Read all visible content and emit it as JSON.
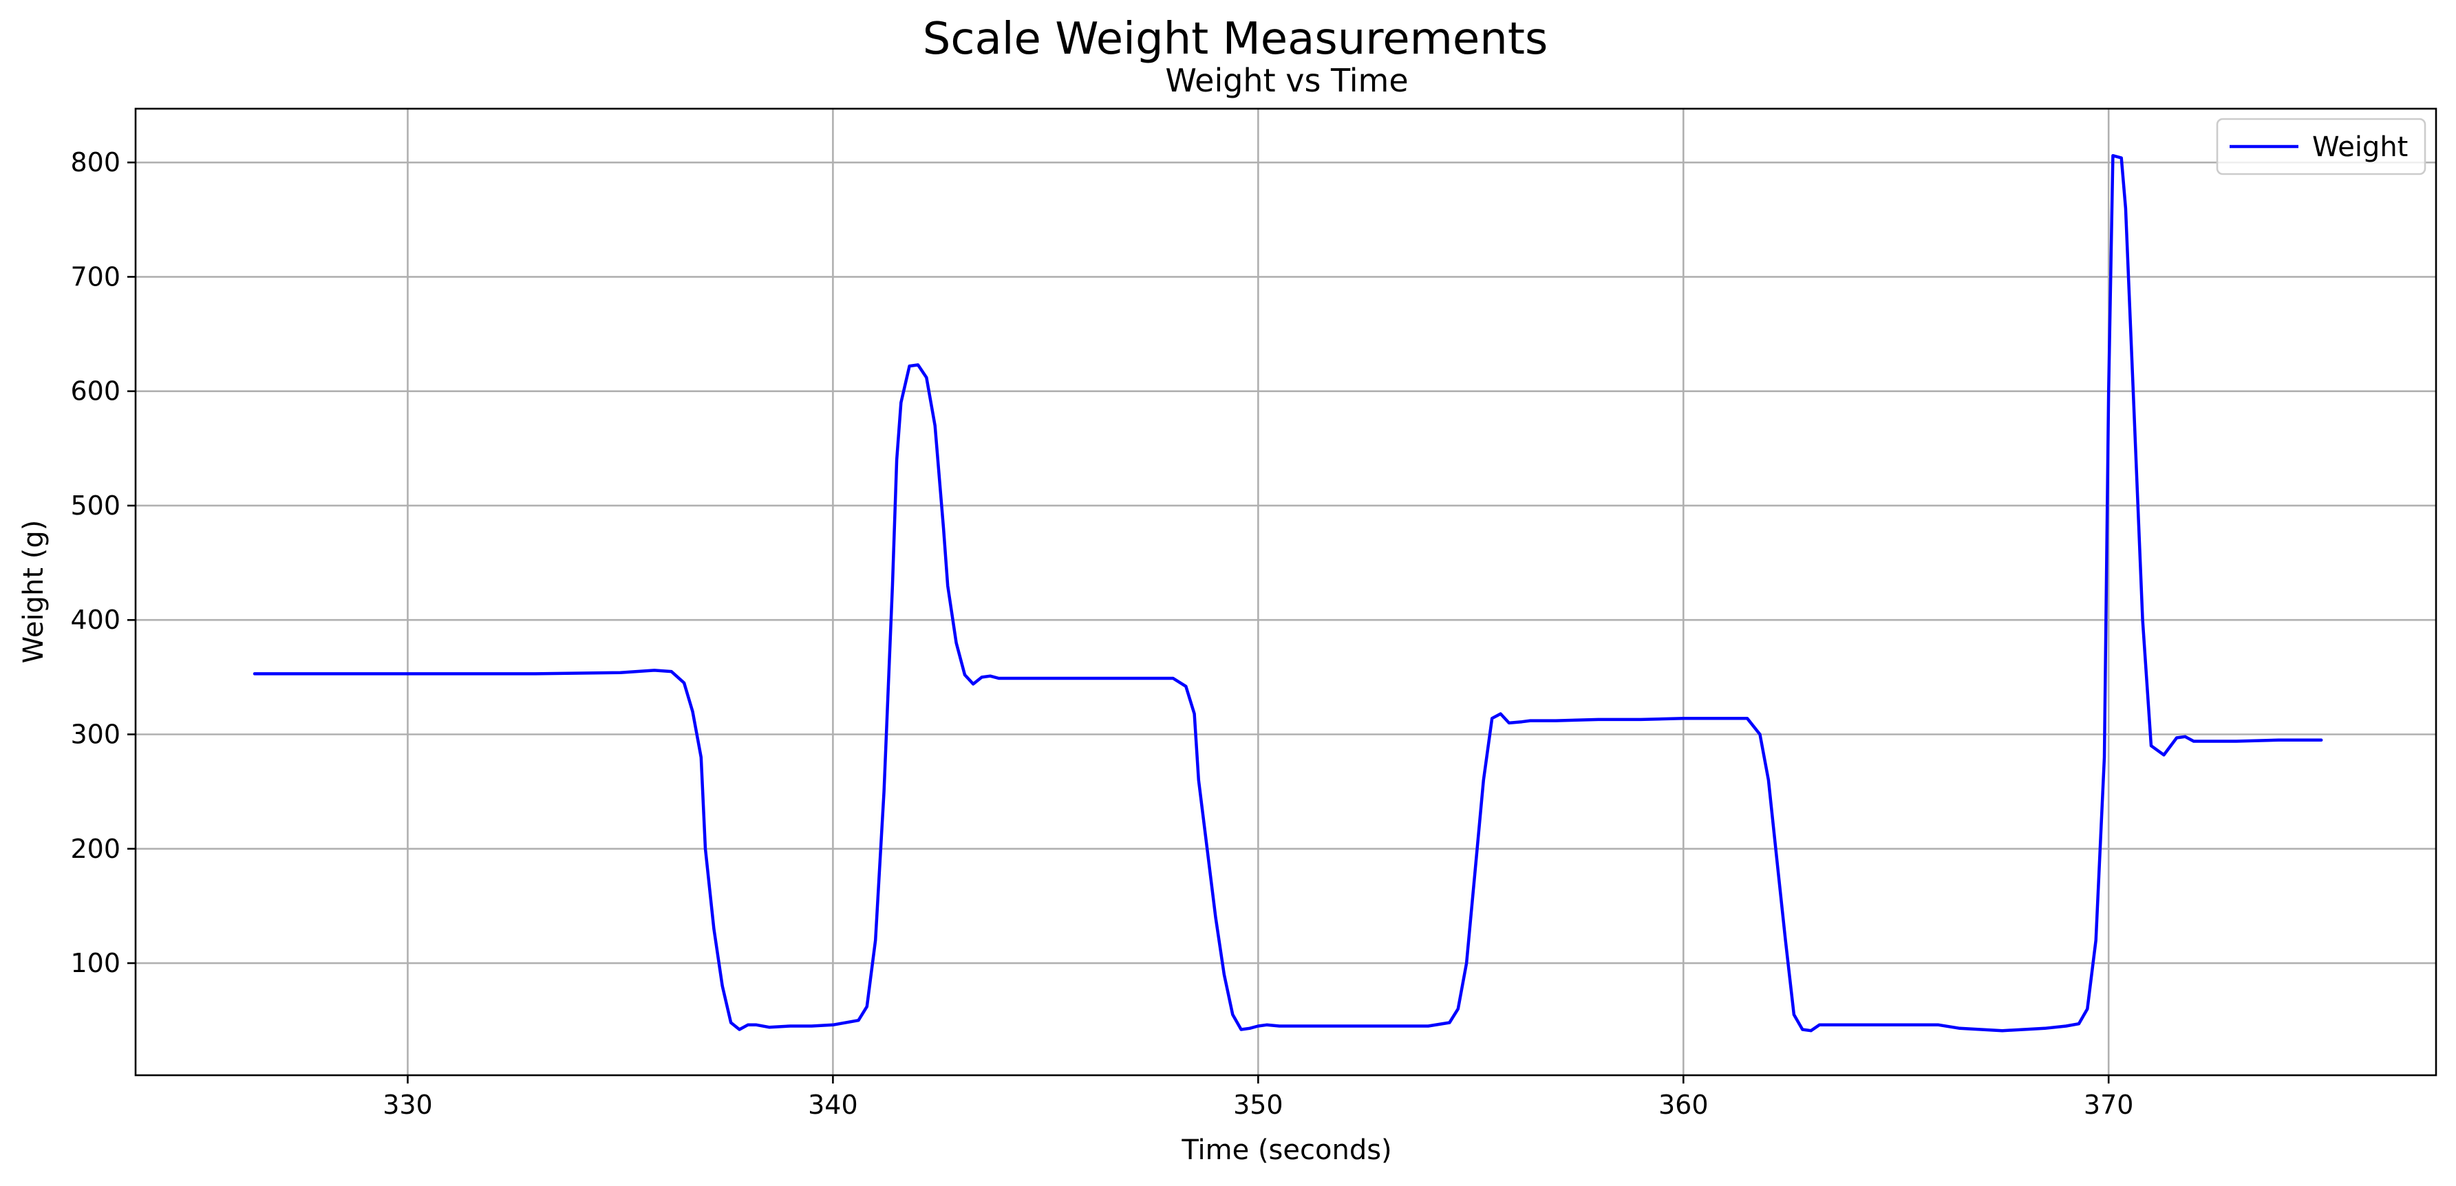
{
  "chart_data": {
    "type": "line",
    "suptitle": "Scale Weight Measurements",
    "title": "Weight vs Time",
    "xlabel": "Time (seconds)",
    "ylabel": "Weight (g)",
    "xlim": [
      323.6,
      377.7
    ],
    "ylim": [
      2,
      847
    ],
    "xticks": [
      330,
      340,
      350,
      360,
      370
    ],
    "yticks": [
      100,
      200,
      300,
      400,
      500,
      600,
      700,
      800
    ],
    "grid": true,
    "legend_position": "top-right",
    "colors": {
      "line": "#0000ff",
      "grid": "#b0b0b0",
      "axes": "#000000"
    },
    "series": [
      {
        "name": "Weight",
        "x": [
          326.4,
          330.0,
          333.0,
          335.0,
          335.8,
          336.2,
          336.5,
          336.7,
          336.9,
          337.0,
          337.2,
          337.4,
          337.6,
          337.8,
          338.0,
          338.2,
          338.5,
          339.0,
          339.5,
          340.0,
          340.6,
          340.8,
          341.0,
          341.2,
          341.4,
          341.5,
          341.6,
          341.8,
          342.0,
          342.2,
          342.4,
          342.6,
          342.7,
          342.9,
          343.1,
          343.3,
          343.5,
          343.7,
          343.9,
          344.2,
          344.6,
          345.0,
          346.0,
          347.0,
          348.0,
          348.3,
          348.5,
          348.6,
          348.8,
          349.0,
          349.2,
          349.4,
          349.6,
          349.8,
          350.0,
          350.2,
          350.5,
          351.0,
          352.0,
          353.0,
          354.0,
          354.5,
          354.7,
          354.9,
          355.1,
          355.3,
          355.5,
          355.7,
          355.9,
          356.2,
          356.4,
          356.6,
          357.0,
          358.0,
          359.0,
          360.0,
          361.0,
          361.5,
          361.8,
          362.0,
          362.2,
          362.4,
          362.6,
          362.8,
          363.0,
          363.2,
          363.5,
          364.0,
          365.0,
          366.0,
          366.5,
          367.5,
          368.5,
          369.0,
          369.3,
          369.5,
          369.7,
          369.9,
          370.0,
          370.1,
          370.3,
          370.4,
          370.6,
          370.8,
          371.0,
          371.3,
          371.6,
          371.8,
          372.0,
          373.0,
          374.0,
          375.0
        ],
        "y": [
          353,
          353,
          353,
          354,
          356,
          355,
          345,
          320,
          280,
          200,
          130,
          80,
          48,
          42,
          46,
          46,
          44,
          45,
          45,
          46,
          50,
          62,
          120,
          250,
          430,
          540,
          590,
          622,
          623,
          612,
          570,
          480,
          430,
          380,
          352,
          344,
          350,
          351,
          349,
          349,
          349,
          349,
          349,
          349,
          349,
          342,
          318,
          260,
          200,
          140,
          90,
          55,
          42,
          43,
          45,
          46,
          45,
          45,
          45,
          45,
          45,
          48,
          60,
          100,
          180,
          260,
          314,
          318,
          310,
          311,
          312,
          312,
          312,
          313,
          313,
          314,
          314,
          314,
          300,
          260,
          190,
          120,
          55,
          42,
          41,
          46,
          46,
          46,
          46,
          46,
          43,
          41,
          43,
          45,
          47,
          60,
          120,
          280,
          600,
          806,
          804,
          760,
          580,
          400,
          290,
          282,
          297,
          298,
          294,
          294,
          295,
          295
        ]
      }
    ]
  }
}
